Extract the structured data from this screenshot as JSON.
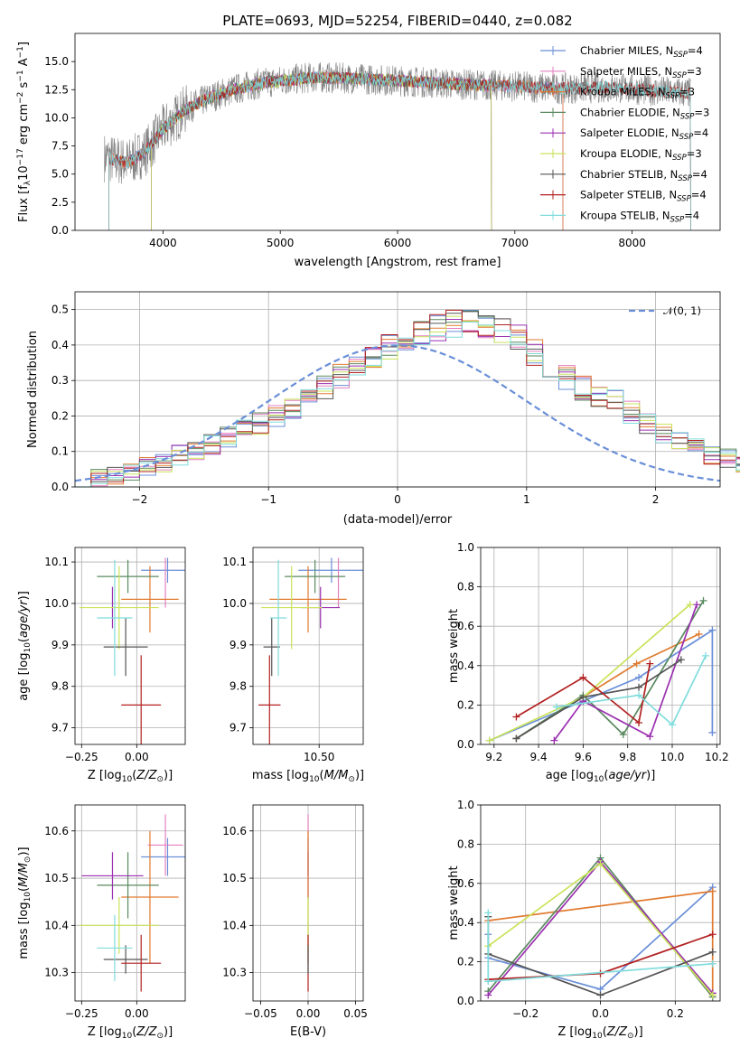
{
  "page": {
    "title": "PLATE=0693, MJD=52254, FIBERID=0440, z=0.082"
  },
  "palette": {
    "Chabrier MILES": "#6a8fd8",
    "Salpeter MILES": "#e37fbf",
    "Kroupa MILES": "#e07b30",
    "Chabrier ELODIE": "#5a8a5f",
    "Salpeter ELODIE": "#9b30b0",
    "Kroupa ELODIE": "#c9e35a",
    "Chabrier STELIB": "#555555",
    "Salpeter STELIB": "#b22020",
    "Kroupa STELIB": "#80dcdc"
  },
  "chart_data": [
    {
      "id": "spectrum",
      "type": "line",
      "title": "PLATE=0693, MJD=52254, FIBERID=0440, z=0.082",
      "xlabel": "wavelength [Angstrom, rest frame]",
      "ylabel": "Flux [f_λ 10^-17 erg cm^-2 s^-1 A^-1]",
      "xlim": [
        3250,
        8750
      ],
      "ylim": [
        0,
        17.5
      ],
      "xticks": [
        4000,
        5000,
        6000,
        7000,
        8000
      ],
      "yticks": [
        0.0,
        2.5,
        5.0,
        7.5,
        10.0,
        12.5,
        15.0
      ],
      "grid": false,
      "legend": "right",
      "legend_entries": [
        {
          "label": "Chabrier MILES, N",
          "sub": "SSP",
          "tail": "=4",
          "key": "Chabrier MILES"
        },
        {
          "label": "Salpeter MILES, N",
          "sub": "SSP",
          "tail": "=3",
          "key": "Salpeter MILES"
        },
        {
          "label": "Kroupa MILES, N",
          "sub": "SSP",
          "tail": "=3",
          "key": "Kroupa MILES"
        },
        {
          "label": "Chabrier ELODIE, N",
          "sub": "SSP",
          "tail": "=3",
          "key": "Chabrier ELODIE"
        },
        {
          "label": "Salpeter ELODIE, N",
          "sub": "SSP",
          "tail": "=4",
          "key": "Salpeter ELODIE"
        },
        {
          "label": "Kroupa ELODIE, N",
          "sub": "SSP",
          "tail": "=3",
          "key": "Kroupa ELODIE"
        },
        {
          "label": "Chabrier STELIB, N",
          "sub": "SSP",
          "tail": "=4",
          "key": "Chabrier STELIB"
        },
        {
          "label": "Salpeter STELIB, N",
          "sub": "SSP",
          "tail": "=4",
          "key": "Salpeter STELIB"
        },
        {
          "label": "Kroupa STELIB, N",
          "sub": "SSP",
          "tail": "=4",
          "key": "Kroupa STELIB"
        }
      ],
      "continuum": [
        [
          3500,
          6.5
        ],
        [
          3700,
          6.0
        ],
        [
          3850,
          7.0
        ],
        [
          4000,
          9.0
        ],
        [
          4200,
          10.8
        ],
        [
          4400,
          11.8
        ],
        [
          4600,
          12.5
        ],
        [
          4800,
          13.0
        ],
        [
          5000,
          13.3
        ],
        [
          5300,
          13.6
        ],
        [
          5600,
          13.5
        ],
        [
          6000,
          13.3
        ],
        [
          6500,
          13.0
        ],
        [
          7000,
          12.8
        ],
        [
          7400,
          12.6
        ],
        [
          7800,
          12.7
        ],
        [
          8200,
          12.4
        ],
        [
          8500,
          12.2
        ]
      ],
      "noise_amplitude": 1.4,
      "model_ranges": {
        "MILES": [
          3540,
          7410
        ],
        "ELODIE": [
          3900,
          6800
        ],
        "STELIB": [
          3540,
          8500
        ]
      }
    },
    {
      "id": "residuals",
      "type": "histogram",
      "xlabel": "(data-model)/error",
      "ylabel": "Normed distribution",
      "xlim": [
        -2.5,
        2.5
      ],
      "ylim": [
        0,
        0.55
      ],
      "xticks": [
        -2,
        -1,
        0,
        1,
        2
      ],
      "yticks": [
        0.0,
        0.1,
        0.2,
        0.3,
        0.4,
        0.5
      ],
      "grid": true,
      "legend": "top-right",
      "reference": {
        "name": "N(0,1)",
        "label_main": "𝒩(0, 1)",
        "color": "#6a8fd8",
        "style": "dashed"
      },
      "bin_width": 0.125,
      "bin_start": -2.5,
      "base_profile": [
        0.02,
        0.025,
        0.03,
        0.04,
        0.06,
        0.07,
        0.09,
        0.1,
        0.12,
        0.14,
        0.16,
        0.18,
        0.2,
        0.22,
        0.25,
        0.28,
        0.31,
        0.34,
        0.36,
        0.39,
        0.41,
        0.43,
        0.45,
        0.46,
        0.46,
        0.45,
        0.44,
        0.42,
        0.38,
        0.34,
        0.31,
        0.28,
        0.26,
        0.24,
        0.21,
        0.18,
        0.15,
        0.13,
        0.11,
        0.09,
        0.08,
        0.065,
        0.05,
        0.04,
        0.035,
        0.03,
        0.025,
        0.02,
        0.018,
        0.015
      ]
    },
    {
      "id": "age-vs-z",
      "type": "errorbar",
      "xlabel": "Z [log10(Z/Z⊙)]",
      "ylabel": "age [log10(age/yr)]",
      "xlim": [
        -0.28,
        0.22
      ],
      "ylim": [
        9.66,
        10.135
      ],
      "xticks": [
        -0.25,
        0.0
      ],
      "xticklabels": [
        "−0.25",
        "0.00"
      ],
      "yticks": [
        9.7,
        9.8,
        9.9,
        10.0,
        10.1
      ],
      "grid": true,
      "points": [
        {
          "key": "Chabrier MILES",
          "x": 0.14,
          "xerr": 0.12,
          "y": 10.08,
          "yerr": 0.03
        },
        {
          "key": "Salpeter MILES",
          "x": 0.13,
          "xerr": 0.0,
          "y": 10.05,
          "yerr": 0.06
        },
        {
          "key": "Kroupa MILES",
          "x": 0.06,
          "xerr": 0.13,
          "y": 10.01,
          "yerr": 0.08
        },
        {
          "key": "Chabrier ELODIE",
          "x": -0.04,
          "xerr": 0.14,
          "y": 10.065,
          "yerr": 0.04
        },
        {
          "key": "Salpeter ELODIE",
          "x": -0.11,
          "xerr": 0.0,
          "y": 9.99,
          "yerr": 0.05
        },
        {
          "key": "Kroupa ELODIE",
          "x": -0.08,
          "xerr": 0.18,
          "y": 9.99,
          "yerr": 0.1
        },
        {
          "key": "Chabrier STELIB",
          "x": -0.05,
          "xerr": 0.1,
          "y": 9.895,
          "yerr": 0.07
        },
        {
          "key": "Salpeter STELIB",
          "x": 0.02,
          "xerr": 0.09,
          "y": 9.755,
          "yerr": 0.12
        },
        {
          "key": "Kroupa STELIB",
          "x": -0.1,
          "xerr": 0.08,
          "y": 9.965,
          "yerr": 0.14
        }
      ]
    },
    {
      "id": "age-vs-mass",
      "type": "errorbar",
      "xlabel": "mass [log10(M/M⊙)]",
      "ylabel": "",
      "xlim": [
        10.26,
        10.66
      ],
      "ylim": [
        9.66,
        10.135
      ],
      "xticks": [
        10.25,
        10.5
      ],
      "xticklabels": [
        "10.25",
        "10.50"
      ],
      "yticks": [
        9.7,
        9.8,
        9.9,
        10.0,
        10.1
      ],
      "grid": true,
      "points": [
        {
          "key": "Chabrier MILES",
          "x": 10.545,
          "xerr": 0.12,
          "y": 10.08,
          "yerr": 0.03
        },
        {
          "key": "Salpeter MILES",
          "x": 10.57,
          "xerr": 0.0,
          "y": 10.05,
          "yerr": 0.06
        },
        {
          "key": "Kroupa MILES",
          "x": 10.46,
          "xerr": 0.14,
          "y": 10.01,
          "yerr": 0.08
        },
        {
          "key": "Chabrier ELODIE",
          "x": 10.485,
          "xerr": 0.11,
          "y": 10.065,
          "yerr": 0.04
        },
        {
          "key": "Salpeter ELODIE",
          "x": 10.505,
          "xerr": 0.07,
          "y": 9.99,
          "yerr": 0.05
        },
        {
          "key": "Kroupa ELODIE",
          "x": 10.4,
          "xerr": 0.11,
          "y": 9.99,
          "yerr": 0.1
        },
        {
          "key": "Chabrier STELIB",
          "x": 10.328,
          "xerr": 0.03,
          "y": 9.895,
          "yerr": 0.07
        },
        {
          "key": "Salpeter STELIB",
          "x": 10.32,
          "xerr": 0.04,
          "y": 9.755,
          "yerr": 0.12
        },
        {
          "key": "Kroupa STELIB",
          "x": 10.352,
          "xerr": 0.03,
          "y": 9.965,
          "yerr": 0.14
        }
      ]
    },
    {
      "id": "weight-vs-age",
      "type": "line",
      "xlabel": "age [log10(age/yr)]",
      "ylabel": "mass weight",
      "xlim": [
        9.14,
        10.215
      ],
      "ylim": [
        0,
        1.0
      ],
      "xticks": [
        9.2,
        9.4,
        9.6,
        9.8,
        10.0,
        10.2
      ],
      "yticks": [
        0.0,
        0.2,
        0.4,
        0.6,
        0.8,
        1.0
      ],
      "grid": true,
      "series": [
        {
          "key": "Chabrier MILES",
          "x": [
            9.18,
            9.85,
            10.18,
            10.18
          ],
          "y": [
            0.02,
            0.34,
            0.58,
            0.06
          ]
        },
        {
          "key": "Kroupa MILES",
          "x": [
            9.3,
            9.84,
            10.12
          ],
          "y": [
            0.03,
            0.41,
            0.56
          ]
        },
        {
          "key": "Chabrier ELODIE",
          "x": [
            9.3,
            9.6,
            9.78,
            10.14
          ],
          "y": [
            0.03,
            0.25,
            0.05,
            0.73
          ]
        },
        {
          "key": "Salpeter ELODIE",
          "x": [
            9.47,
            9.6,
            9.9,
            10.11
          ],
          "y": [
            0.02,
            0.22,
            0.04,
            0.71
          ]
        },
        {
          "key": "Kroupa ELODIE",
          "x": [
            9.18,
            9.6,
            10.08
          ],
          "y": [
            0.02,
            0.24,
            0.71
          ]
        },
        {
          "key": "Chabrier STELIB",
          "x": [
            9.3,
            9.6,
            9.85,
            10.04
          ],
          "y": [
            0.03,
            0.24,
            0.29,
            0.43
          ]
        },
        {
          "key": "Salpeter STELIB",
          "x": [
            9.3,
            9.6,
            9.85,
            9.9
          ],
          "y": [
            0.14,
            0.34,
            0.11,
            0.41
          ]
        },
        {
          "key": "Kroupa STELIB",
          "x": [
            9.48,
            9.85,
            10.0,
            10.15
          ],
          "y": [
            0.19,
            0.25,
            0.1,
            0.45
          ]
        }
      ]
    },
    {
      "id": "mass-vs-z",
      "type": "errorbar",
      "xlabel": "Z [log10(Z/Z⊙)]",
      "ylabel": "mass [log10(M/M⊙)]",
      "xlim": [
        -0.28,
        0.22
      ],
      "ylim": [
        10.24,
        10.655
      ],
      "xticks": [
        -0.25,
        0.0
      ],
      "xticklabels": [
        "−0.25",
        "0.00"
      ],
      "yticks": [
        10.3,
        10.4,
        10.5,
        10.6
      ],
      "grid": true,
      "points": [
        {
          "key": "Chabrier MILES",
          "x": 0.14,
          "xerr": 0.12,
          "y": 10.545,
          "yerr": 0.04
        },
        {
          "key": "Salpeter MILES",
          "x": 0.13,
          "xerr": 0.08,
          "y": 10.57,
          "yerr": 0.065
        },
        {
          "key": "Kroupa MILES",
          "x": 0.06,
          "xerr": 0.13,
          "y": 10.46,
          "yerr": 0.14
        },
        {
          "key": "Chabrier ELODIE",
          "x": -0.04,
          "xerr": 0.14,
          "y": 10.485,
          "yerr": 0.07
        },
        {
          "key": "Salpeter ELODIE",
          "x": -0.11,
          "xerr": 0.14,
          "y": 10.505,
          "yerr": 0.05
        },
        {
          "key": "Kroupa ELODIE",
          "x": -0.08,
          "xerr": 0.18,
          "y": 10.4,
          "yerr": 0.06
        },
        {
          "key": "Chabrier STELIB",
          "x": -0.05,
          "xerr": 0.1,
          "y": 10.328,
          "yerr": 0.03
        },
        {
          "key": "Salpeter STELIB",
          "x": 0.02,
          "xerr": 0.09,
          "y": 10.32,
          "yerr": 0.06
        },
        {
          "key": "Kroupa STELIB",
          "x": -0.1,
          "xerr": 0.08,
          "y": 10.352,
          "yerr": 0.07
        }
      ]
    },
    {
      "id": "mass-vs-ebv",
      "type": "errorbar",
      "xlabel": "E(B-V)",
      "ylabel": "",
      "xlim": [
        -0.058,
        0.058
      ],
      "ylim": [
        10.24,
        10.655
      ],
      "xticks": [
        -0.05,
        0.0,
        0.05
      ],
      "xticklabels": [
        "−0.05",
        "0.00",
        "0.05"
      ],
      "yticks": [
        10.3,
        10.4,
        10.5,
        10.6
      ],
      "grid": true,
      "points": [
        {
          "key": "Salpeter MILES",
          "x": 0.0,
          "xerr": 0.0,
          "y": 10.57,
          "yerr": 0.065
        },
        {
          "key": "Chabrier MILES",
          "x": 0.0,
          "xerr": 0.0,
          "y": 10.545,
          "yerr": 0.04
        },
        {
          "key": "Salpeter ELODIE",
          "x": 0.0,
          "xerr": 0.0,
          "y": 10.505,
          "yerr": 0.05
        },
        {
          "key": "Kroupa MILES",
          "x": 0.0,
          "xerr": 0.0,
          "y": 10.46,
          "yerr": 0.14
        },
        {
          "key": "Kroupa ELODIE",
          "x": 0.0,
          "xerr": 0.0,
          "y": 10.4,
          "yerr": 0.06
        },
        {
          "key": "Salpeter STELIB",
          "x": 0.0,
          "xerr": 0.0,
          "y": 10.32,
          "yerr": 0.06
        },
        {
          "key": "Chabrier STELIB",
          "x": 0.0,
          "xerr": 0.0,
          "y": 10.328,
          "yerr": 0.03
        }
      ]
    },
    {
      "id": "weight-vs-z",
      "type": "line",
      "xlabel": "Z [log10(Z/Z⊙)]",
      "ylabel": "mass weight",
      "xlim": [
        -0.32,
        0.32
      ],
      "ylim": [
        0,
        1.0
      ],
      "xticks": [
        -0.2,
        0.0,
        0.2
      ],
      "xticklabels": [
        "−0.2",
        "0.0",
        "0.2"
      ],
      "yticks": [
        0.0,
        0.2,
        0.4,
        0.6,
        0.8,
        1.0
      ],
      "grid": true,
      "series": [
        {
          "key": "Chabrier MILES",
          "x": [
            -0.3,
            -0.3,
            0.0,
            0.3
          ],
          "y": [
            0.34,
            0.22,
            0.06,
            0.58
          ]
        },
        {
          "key": "Kroupa MILES",
          "x": [
            -0.3,
            0.3,
            0.3
          ],
          "y": [
            0.41,
            0.56,
            0.03
          ]
        },
        {
          "key": "Chabrier ELODIE",
          "x": [
            -0.3,
            0.0,
            0.3
          ],
          "y": [
            0.05,
            0.73,
            0.02
          ]
        },
        {
          "key": "Salpeter ELODIE",
          "x": [
            -0.3,
            0.0,
            0.3
          ],
          "y": [
            0.03,
            0.71,
            0.04
          ]
        },
        {
          "key": "Kroupa ELODIE",
          "x": [
            -0.3,
            0.0,
            0.3
          ],
          "y": [
            0.28,
            0.7,
            0.03
          ]
        },
        {
          "key": "Chabrier STELIB",
          "x": [
            -0.3,
            -0.3,
            0.0,
            0.3
          ],
          "y": [
            0.43,
            0.24,
            0.03,
            0.25
          ]
        },
        {
          "key": "Salpeter STELIB",
          "x": [
            -0.3,
            0.0,
            0.3
          ],
          "y": [
            0.11,
            0.14,
            0.34
          ]
        },
        {
          "key": "Kroupa STELIB",
          "x": [
            -0.3,
            -0.3,
            0.3
          ],
          "y": [
            0.45,
            0.1,
            0.19
          ]
        }
      ]
    }
  ]
}
